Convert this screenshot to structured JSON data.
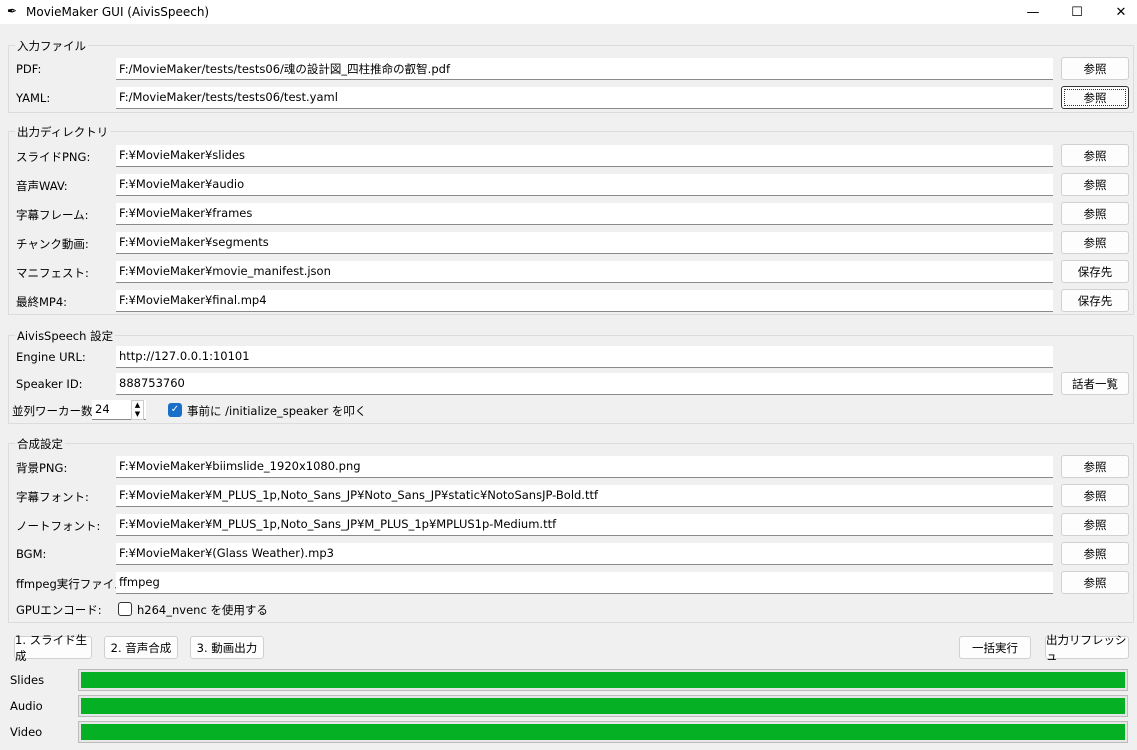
{
  "window": {
    "title": "MovieMaker GUI (AivisSpeech)",
    "minimize": "—",
    "maximize": "☐",
    "close": "✕"
  },
  "input_group": {
    "title": "入力ファイル",
    "rows": [
      {
        "label": "PDF:",
        "value": "F:/MovieMaker/tests/tests06/魂の設計図_四柱推命の叡智.pdf",
        "button": "参照"
      },
      {
        "label": "YAML:",
        "value": "F:/MovieMaker/tests/tests06/test.yaml",
        "button": "参照"
      }
    ]
  },
  "output_group": {
    "title": "出力ディレクトリ",
    "rows": [
      {
        "label": "スライドPNG:",
        "value": "F:¥MovieMaker¥slides",
        "button": "参照"
      },
      {
        "label": "音声WAV:",
        "value": "F:¥MovieMaker¥audio",
        "button": "参照"
      },
      {
        "label": "字幕フレーム:",
        "value": "F:¥MovieMaker¥frames",
        "button": "参照"
      },
      {
        "label": "チャンク動画:",
        "value": "F:¥MovieMaker¥segments",
        "button": "参照"
      },
      {
        "label": "マニフェスト:",
        "value": "F:¥MovieMaker¥movie_manifest.json",
        "button": "保存先"
      },
      {
        "label": "最終MP4:",
        "value": "F:¥MovieMaker¥final.mp4",
        "button": "保存先"
      }
    ]
  },
  "aivis_group": {
    "title": "AivisSpeech 設定",
    "engine_label": "Engine URL:",
    "engine_value": "http://127.0.0.1:10101",
    "speaker_label": "Speaker ID:",
    "speaker_value": "888753760",
    "speaker_button": "話者一覧",
    "workers_label": "並列ワーカー数:",
    "workers_value": "24",
    "init_checkbox_label": "事前に /initialize_speaker を叩く",
    "init_checked": true
  },
  "compose_group": {
    "title": "合成設定",
    "rows": [
      {
        "label": "背景PNG:",
        "value": "F:¥MovieMaker¥biimslide_1920x1080.png",
        "button": "参照"
      },
      {
        "label": "字幕フォント:",
        "value": "F:¥MovieMaker¥M_PLUS_1p,Noto_Sans_JP¥Noto_Sans_JP¥static¥NotoSansJP-Bold.ttf",
        "button": "参照"
      },
      {
        "label": "ノートフォント:",
        "value": "F:¥MovieMaker¥M_PLUS_1p,Noto_Sans_JP¥M_PLUS_1p¥MPLUS1p-Medium.ttf",
        "button": "参照"
      },
      {
        "label": "BGM:",
        "value": "F:¥MovieMaker¥(Glass Weather).mp3",
        "button": "参照"
      },
      {
        "label": "ffmpeg実行ファイル",
        "value": "ffmpeg",
        "button": "参照"
      }
    ],
    "gpu_label": "GPUエンコード:",
    "gpu_checkbox_label": "h264_nvenc を使用する",
    "gpu_checked": false
  },
  "actions": {
    "slides": "1. スライド生成",
    "audio": "2. 音声合成",
    "video": "3. 動画出力",
    "run_all": "一括実行",
    "refresh": "出力リフレッシュ"
  },
  "progress": [
    {
      "label": "Slides",
      "percent": 100
    },
    {
      "label": "Audio",
      "percent": 100
    },
    {
      "label": "Video",
      "percent": 100
    }
  ],
  "colors": {
    "progress": "#06b025",
    "checkbox": "#1a6fc9"
  }
}
